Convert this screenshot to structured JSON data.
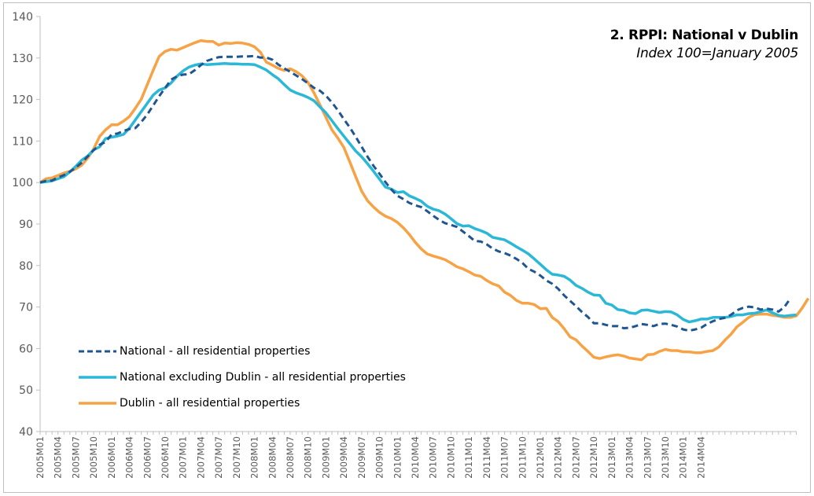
{
  "chart_data": {
    "type": "line",
    "title": "2. RPPI: National v Dublin",
    "subtitle": "Index 100=January 2005",
    "xlabel": "",
    "ylabel": "",
    "ylim": [
      40,
      140
    ],
    "yticks": [
      40,
      50,
      60,
      70,
      80,
      90,
      100,
      110,
      120,
      130,
      140
    ],
    "grid": false,
    "legend_position": "bottom-left",
    "x_start": "2005M01",
    "x_end": "2014M06",
    "x_tick_labels": [
      "2005M01",
      "2005M04",
      "2005M07",
      "2005M10",
      "2006M01",
      "2006M04",
      "2006M07",
      "2006M10",
      "2007M01",
      "2007M04",
      "2007M07",
      "2007M10",
      "2008M01",
      "2008M04",
      "2008M07",
      "2008M10",
      "2009M01",
      "2009M04",
      "2009M07",
      "2009M10",
      "2010M01",
      "2010M04",
      "2010M07",
      "2010M10",
      "2011M01",
      "2011M04",
      "2011M07",
      "2011M10",
      "2012M01",
      "2012M04",
      "2012M07",
      "2012M10",
      "2013M01",
      "2013M04",
      "2013M07",
      "2013M10",
      "2014M01",
      "2014M04"
    ],
    "series": [
      {
        "name": "National - all residential properties",
        "color": "#1f5591",
        "style": "dashed",
        "values": [
          100,
          100.4,
          100.5,
          101.2,
          101.8,
          102.6,
          103.6,
          104.8,
          106.3,
          107.8,
          109.1,
          109.8,
          111.6,
          111.8,
          112.4,
          112.9,
          113.1,
          114.6,
          116.4,
          118.6,
          120.8,
          122.8,
          124.8,
          125.6,
          126,
          126.1,
          127.1,
          128.3,
          129.3,
          129.8,
          130.2,
          130.3,
          130.3,
          130.3,
          130.4,
          130.4,
          130.5,
          130.1,
          130.1,
          129.6,
          128.4,
          127.5,
          126.7,
          125.8,
          124.9,
          123.9,
          122.8,
          122.1,
          120.9,
          119.3,
          117.4,
          115.3,
          113.3,
          111,
          108.6,
          106.2,
          104,
          102.1,
          100.1,
          98.3,
          96.8,
          96,
          95.1,
          94.5,
          94.1,
          93.1,
          92,
          91,
          90.2,
          89.8,
          89.3,
          88.2,
          87.1,
          85.9,
          85.8,
          85.1,
          84.1,
          83.4,
          83,
          82.4,
          81.6,
          80.6,
          79.2,
          78.5,
          77.6,
          76.4,
          75.6,
          74.4,
          72.8,
          71.5,
          70.2,
          68.8,
          67.6,
          66.1,
          66.1,
          65.7,
          65.4,
          65.4,
          64.9,
          65,
          65.4,
          65.9,
          65.7,
          65.4,
          65.9,
          66,
          65.7,
          65.3,
          64.6,
          64.3,
          64.6,
          65,
          65.9,
          66.6,
          67.1,
          67.4,
          68.1,
          69.2,
          69.8,
          70.1,
          69.9,
          69.4,
          69.6,
          69.4,
          68.9,
          70,
          72.1
        ]
      },
      {
        "name": "National excluding Dublin - all residential properties",
        "color": "#2bb8d6",
        "style": "solid",
        "values": [
          100,
          100.2,
          100.4,
          100.9,
          101.4,
          102.6,
          103.9,
          105.4,
          106.4,
          107.9,
          108.6,
          110.6,
          110.9,
          111.2,
          111.6,
          113.1,
          115.1,
          117.1,
          119.1,
          121.1,
          122.3,
          122.8,
          124,
          125.6,
          126.9,
          127.8,
          128.3,
          128.6,
          128.4,
          128.5,
          128.6,
          128.7,
          128.6,
          128.6,
          128.5,
          128.5,
          128.4,
          127.8,
          127.1,
          126,
          125,
          123.6,
          122.3,
          121.6,
          121.1,
          120.5,
          119.7,
          118.2,
          116.8,
          114.9,
          113,
          111.2,
          109.4,
          107.6,
          106.2,
          104.5,
          102.7,
          100.8,
          98.9,
          98.4,
          97.6,
          97.8,
          96.8,
          96.2,
          95.5,
          94.3,
          93.6,
          93.2,
          92.4,
          91.3,
          90.1,
          89.5,
          89.6,
          88.9,
          88.4,
          87.8,
          86.8,
          86.5,
          86.2,
          85.4,
          84.5,
          83.7,
          82.8,
          81.6,
          80.3,
          79,
          77.9,
          77.7,
          77.4,
          76.5,
          75.2,
          74.5,
          73.6,
          72.9,
          72.8,
          70.9,
          70.5,
          69.4,
          69.2,
          68.6,
          68.4,
          69.2,
          69.3,
          69,
          68.7,
          68.9,
          68.8,
          68.1,
          67,
          66.4,
          66.7,
          67.1,
          67.1,
          67.5,
          67.5,
          67.5,
          67.7,
          68.1,
          68.1,
          68.4,
          68.5,
          68.9,
          69.3,
          68.6,
          68,
          67.8,
          68,
          68.1
        ]
      },
      {
        "name": "Dublin - all residential properties",
        "color": "#f7a245",
        "style": "solid",
        "values": [
          100,
          100.9,
          101.1,
          101.7,
          102.3,
          102.7,
          103.3,
          104.2,
          105.9,
          108.1,
          111.1,
          112.7,
          113.9,
          113.9,
          114.8,
          115.9,
          117.9,
          120.1,
          123.6,
          127.1,
          130.4,
          131.6,
          132.1,
          131.9,
          132.5,
          133.1,
          133.7,
          134.2,
          134,
          134,
          133.1,
          133.6,
          133.5,
          133.7,
          133.6,
          133.3,
          132.7,
          131.4,
          129,
          128.3,
          127.5,
          127,
          127.4,
          126.7,
          125.7,
          124.1,
          121.6,
          118.7,
          115.7,
          112.7,
          110.7,
          108.5,
          105,
          101.4,
          97.9,
          95.6,
          94.1,
          92.8,
          91.9,
          91.3,
          90.4,
          89.1,
          87.5,
          85.6,
          84,
          82.8,
          82.3,
          81.9,
          81.4,
          80.6,
          79.7,
          79.2,
          78.5,
          77.7,
          77.4,
          76.4,
          75.6,
          75.1,
          73.6,
          72.8,
          71.6,
          70.9,
          70.9,
          70.6,
          69.6,
          69.7,
          67.5,
          66.5,
          64.8,
          62.8,
          62.1,
          60.6,
          59.3,
          57.9,
          57.6,
          58,
          58.3,
          58.5,
          58.2,
          57.7,
          57.5,
          57.3,
          58.5,
          58.6,
          59.3,
          59.8,
          59.5,
          59.5,
          59.2,
          59.2,
          59,
          59,
          59.3,
          59.5,
          60.4,
          62,
          63.4,
          65.2,
          66.3,
          67.5,
          68.2,
          68.3,
          68.3,
          68,
          67.8,
          67.5,
          67.5,
          67.9,
          69.8,
          72.1
        ]
      }
    ]
  }
}
